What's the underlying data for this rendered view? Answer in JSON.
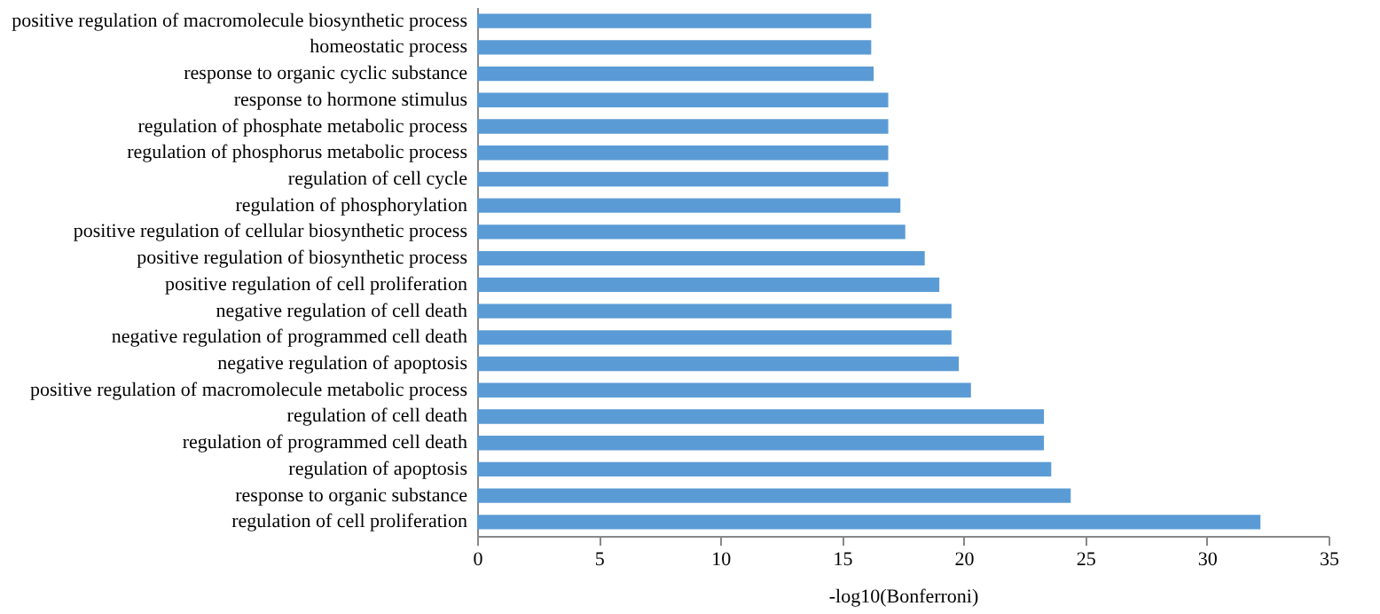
{
  "chart_data": {
    "type": "bar",
    "orientation": "horizontal",
    "xlabel": "-log10(Bonferroni)",
    "categories": [
      "positive regulation of macromolecule biosynthetic process",
      "homeostatic process",
      "response to organic cyclic substance",
      "response to hormone stimulus",
      "regulation of phosphate metabolic process",
      "regulation of phosphorus metabolic process",
      "regulation of cell cycle",
      "regulation of phosphorylation",
      "positive regulation of cellular biosynthetic process",
      "positive regulation of biosynthetic process",
      "positive regulation of cell proliferation",
      "negative regulation of cell death",
      "negative regulation of programmed cell death",
      "negative regulation of apoptosis",
      "positive regulation of macromolecule metabolic process",
      "regulation of cell death",
      "regulation of programmed cell death",
      "regulation of apoptosis",
      "response to organic substance",
      "regulation of cell proliferation"
    ],
    "values": [
      16.2,
      16.2,
      16.3,
      16.9,
      16.9,
      16.9,
      16.9,
      17.4,
      17.6,
      18.4,
      19.0,
      19.5,
      19.5,
      19.8,
      20.3,
      23.3,
      23.3,
      23.6,
      24.4,
      32.2
    ],
    "color": "#5b9bd5",
    "xlim": [
      0,
      35
    ],
    "xticks": [
      0,
      5,
      10,
      15,
      20,
      25,
      30,
      35
    ],
    "grid": false
  }
}
